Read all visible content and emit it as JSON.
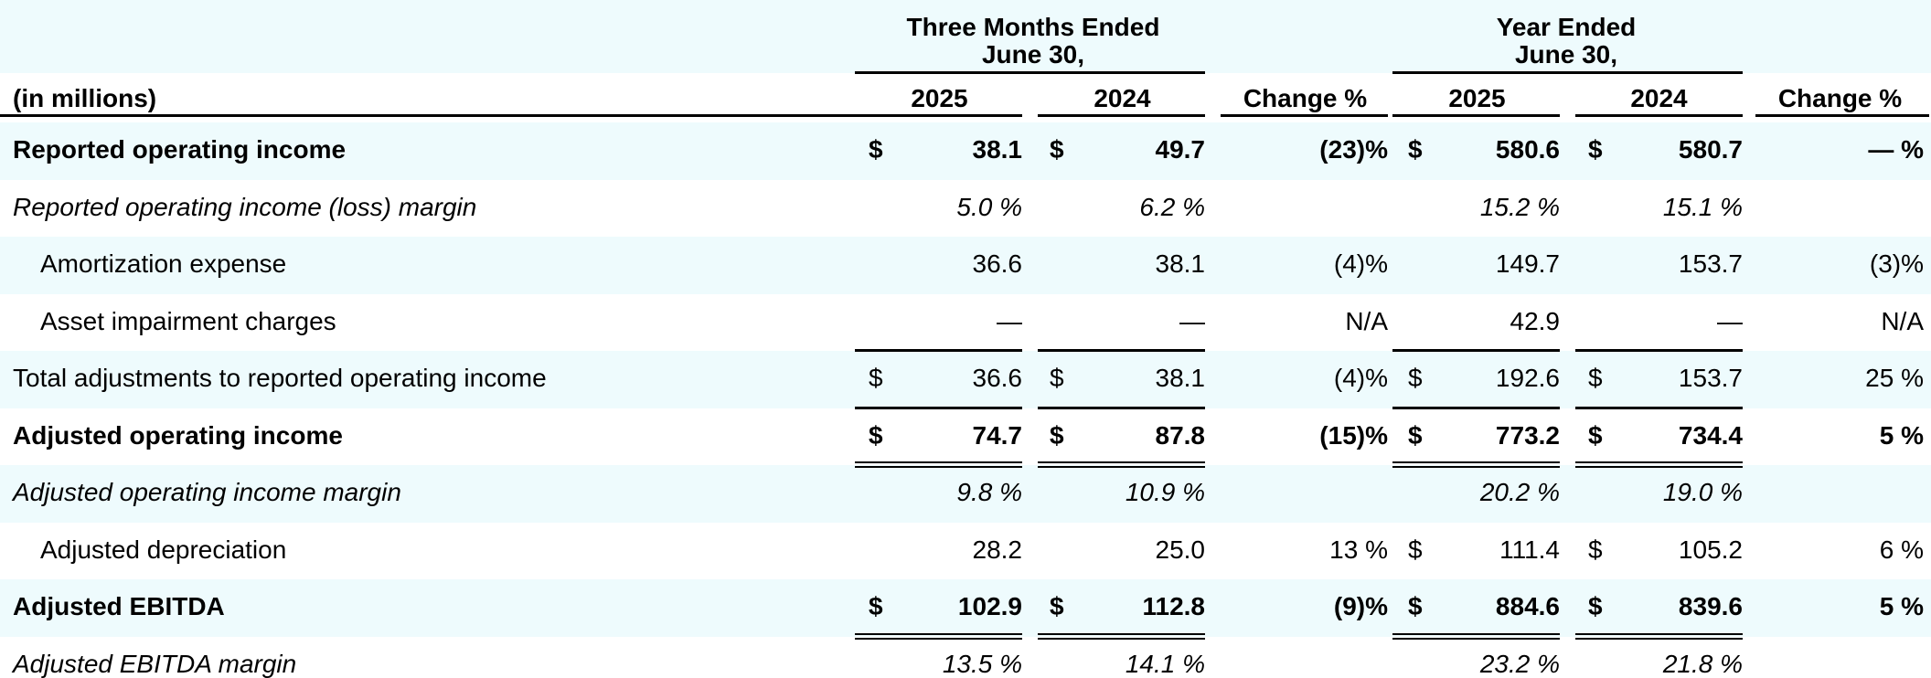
{
  "colors": {
    "band": "#eefbfd",
    "rule": "#000000"
  },
  "header": {
    "group1_line1": "Three Months Ended",
    "group1_line2": "June 30,",
    "group2_line1": "Year Ended",
    "group2_line2": "June 30,",
    "units_label": "(in millions)",
    "col_2025_q": "2025",
    "col_2024_q": "2024",
    "col_change_q": "Change %",
    "col_2025_y": "2025",
    "col_2024_y": "2024",
    "col_change_y": "Change %"
  },
  "rows": [
    {
      "label": "Reported operating income",
      "style": "bold",
      "d1": "$",
      "v1": "38.1",
      "d2": "$",
      "v2": "49.7",
      "c1": "(23)%",
      "d3": "$",
      "v3": "580.6",
      "d4": "$",
      "v4": "580.7",
      "c2": "— %"
    },
    {
      "label": "Reported operating income (loss) margin",
      "style": "italic",
      "d1": "",
      "v1": "5.0 %",
      "d2": "",
      "v2": "6.2 %",
      "c1": "",
      "d3": "",
      "v3": "15.2 %",
      "d4": "",
      "v4": "15.1 %",
      "c2": ""
    },
    {
      "label": "Amortization expense",
      "style": "indent",
      "d1": "",
      "v1": "36.6",
      "d2": "",
      "v2": "38.1",
      "c1": "(4)%",
      "d3": "",
      "v3": "149.7",
      "d4": "",
      "v4": "153.7",
      "c2": "(3)%"
    },
    {
      "label": "Asset impairment charges",
      "style": "indent",
      "d1": "",
      "v1": "—",
      "d2": "",
      "v2": "—",
      "c1": "N/A",
      "d3": "",
      "v3": "42.9",
      "d4": "",
      "v4": "—",
      "c2": "N/A"
    },
    {
      "label": "Total adjustments to reported operating income",
      "style": "normal",
      "d1": "$",
      "v1": "36.6",
      "d2": "$",
      "v2": "38.1",
      "c1": "(4)%",
      "d3": "$",
      "v3": "192.6",
      "d4": "$",
      "v4": "153.7",
      "c2": "25 %"
    },
    {
      "label": "Adjusted operating income",
      "style": "bold",
      "d1": "$",
      "v1": "74.7",
      "d2": "$",
      "v2": "87.8",
      "c1": "(15)%",
      "d3": "$",
      "v3": "773.2",
      "d4": "$",
      "v4": "734.4",
      "c2": "5 %"
    },
    {
      "label": "Adjusted operating income margin",
      "style": "italic",
      "d1": "",
      "v1": "9.8 %",
      "d2": "",
      "v2": "10.9 %",
      "c1": "",
      "d3": "",
      "v3": "20.2 %",
      "d4": "",
      "v4": "19.0 %",
      "c2": ""
    },
    {
      "label": "Adjusted depreciation",
      "style": "indent",
      "d1": "",
      "v1": "28.2",
      "d2": "",
      "v2": "25.0",
      "c1": "13 %",
      "d3": "$",
      "v3": "111.4",
      "d4": "$",
      "v4": "105.2",
      "c2": "6 %"
    },
    {
      "label": "Adjusted EBITDA",
      "style": "bold",
      "d1": "$",
      "v1": "102.9",
      "d2": "$",
      "v2": "112.8",
      "c1": "(9)%",
      "d3": "$",
      "v3": "884.6",
      "d4": "$",
      "v4": "839.6",
      "c2": "5 %"
    },
    {
      "label": "Adjusted EBITDA margin",
      "style": "italic",
      "d1": "",
      "v1": "13.5 %",
      "d2": "",
      "v2": "14.1 %",
      "c1": "",
      "d3": "",
      "v3": "23.2 %",
      "d4": "",
      "v4": "21.8 %",
      "c2": ""
    }
  ]
}
